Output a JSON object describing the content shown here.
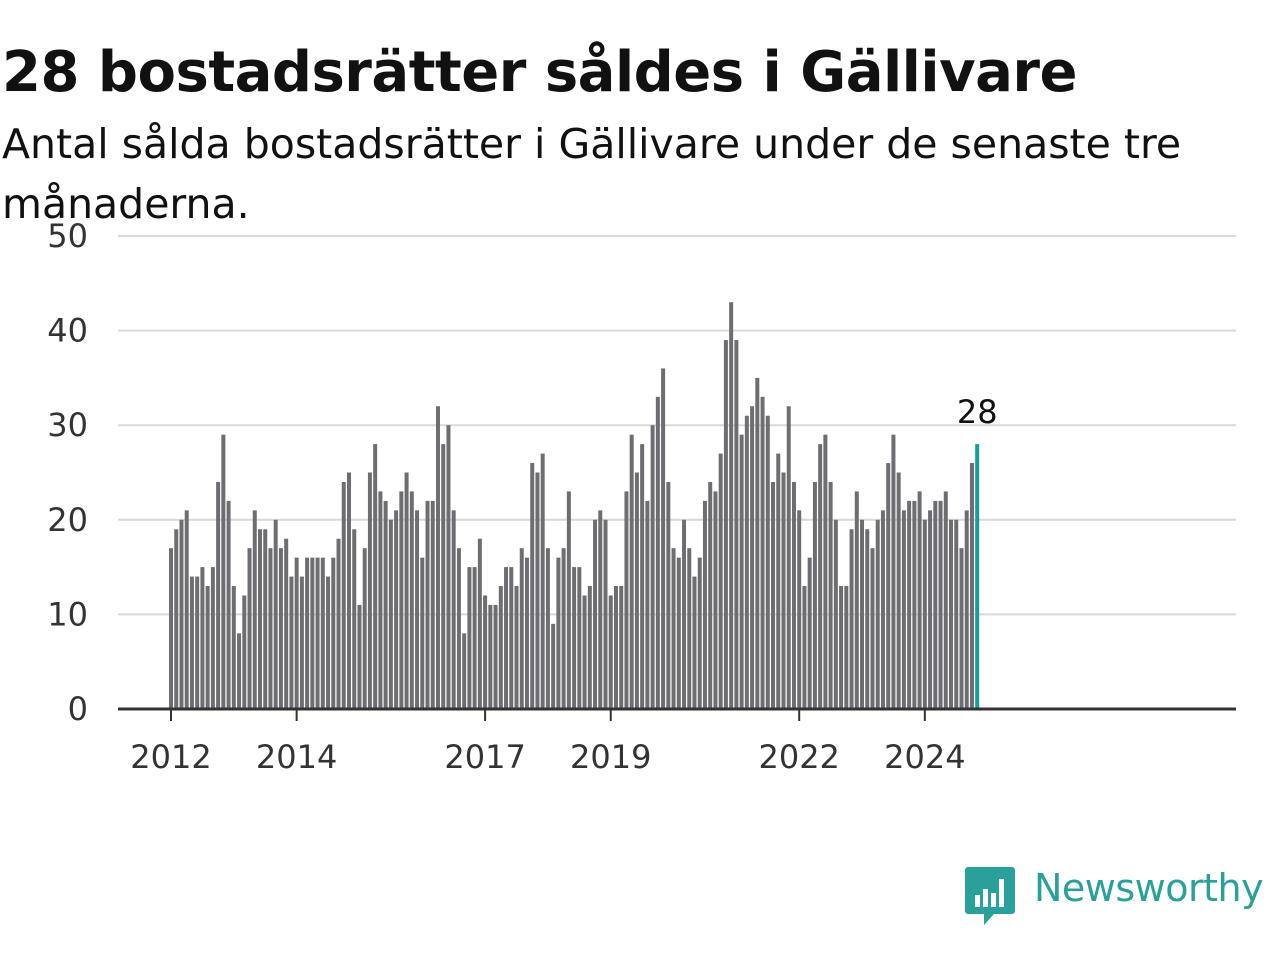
{
  "title": "28 bostadsrätter såldes i Gällivare",
  "subtitle": "Antal sålda bostadsrätter i Gällivare under de senaste tre månaderna.",
  "brand": {
    "name": "Newsworthy",
    "color": "#2aa09a",
    "icon": "newsworthy-logo-icon"
  },
  "chart_data": {
    "type": "bar",
    "title": "28 bostadsrätter såldes i Gällivare",
    "subtitle": "Antal sålda bostadsrätter i Gällivare under de senaste tre månaderna.",
    "xlabel": "",
    "ylabel": "",
    "ylim": [
      0,
      50
    ],
    "yticks": [
      0,
      10,
      20,
      30,
      40,
      50
    ],
    "xticks": [
      "2012",
      "2014",
      "2017",
      "2019",
      "2022",
      "2024"
    ],
    "x_first_period": "2012-01",
    "grid": true,
    "bar_color": "#6e6d72",
    "highlight_color": "#12a097",
    "highlight_label": "28",
    "values": [
      17,
      19,
      20,
      21,
      14,
      14,
      15,
      13,
      15,
      24,
      29,
      22,
      13,
      8,
      12,
      17,
      21,
      19,
      19,
      17,
      20,
      17,
      18,
      14,
      16,
      14,
      16,
      16,
      16,
      16,
      14,
      16,
      18,
      24,
      25,
      19,
      11,
      17,
      25,
      28,
      23,
      22,
      20,
      21,
      23,
      25,
      23,
      21,
      16,
      22,
      22,
      32,
      28,
      30,
      21,
      17,
      8,
      15,
      15,
      18,
      12,
      11,
      11,
      13,
      15,
      15,
      13,
      17,
      16,
      26,
      25,
      27,
      17,
      9,
      16,
      17,
      23,
      15,
      15,
      12,
      13,
      20,
      21,
      20,
      12,
      13,
      13,
      23,
      29,
      25,
      28,
      22,
      30,
      33,
      36,
      24,
      17,
      16,
      20,
      17,
      14,
      16,
      22,
      24,
      23,
      27,
      39,
      43,
      39,
      29,
      31,
      32,
      35,
      33,
      31,
      24,
      27,
      25,
      32,
      24,
      21,
      13,
      16,
      24,
      28,
      29,
      24,
      20,
      13,
      13,
      19,
      23,
      20,
      19,
      17,
      20,
      21,
      26,
      29,
      25,
      21,
      22,
      22,
      23,
      20,
      21,
      22,
      22,
      23,
      20,
      20,
      17,
      21,
      26,
      28
    ]
  }
}
